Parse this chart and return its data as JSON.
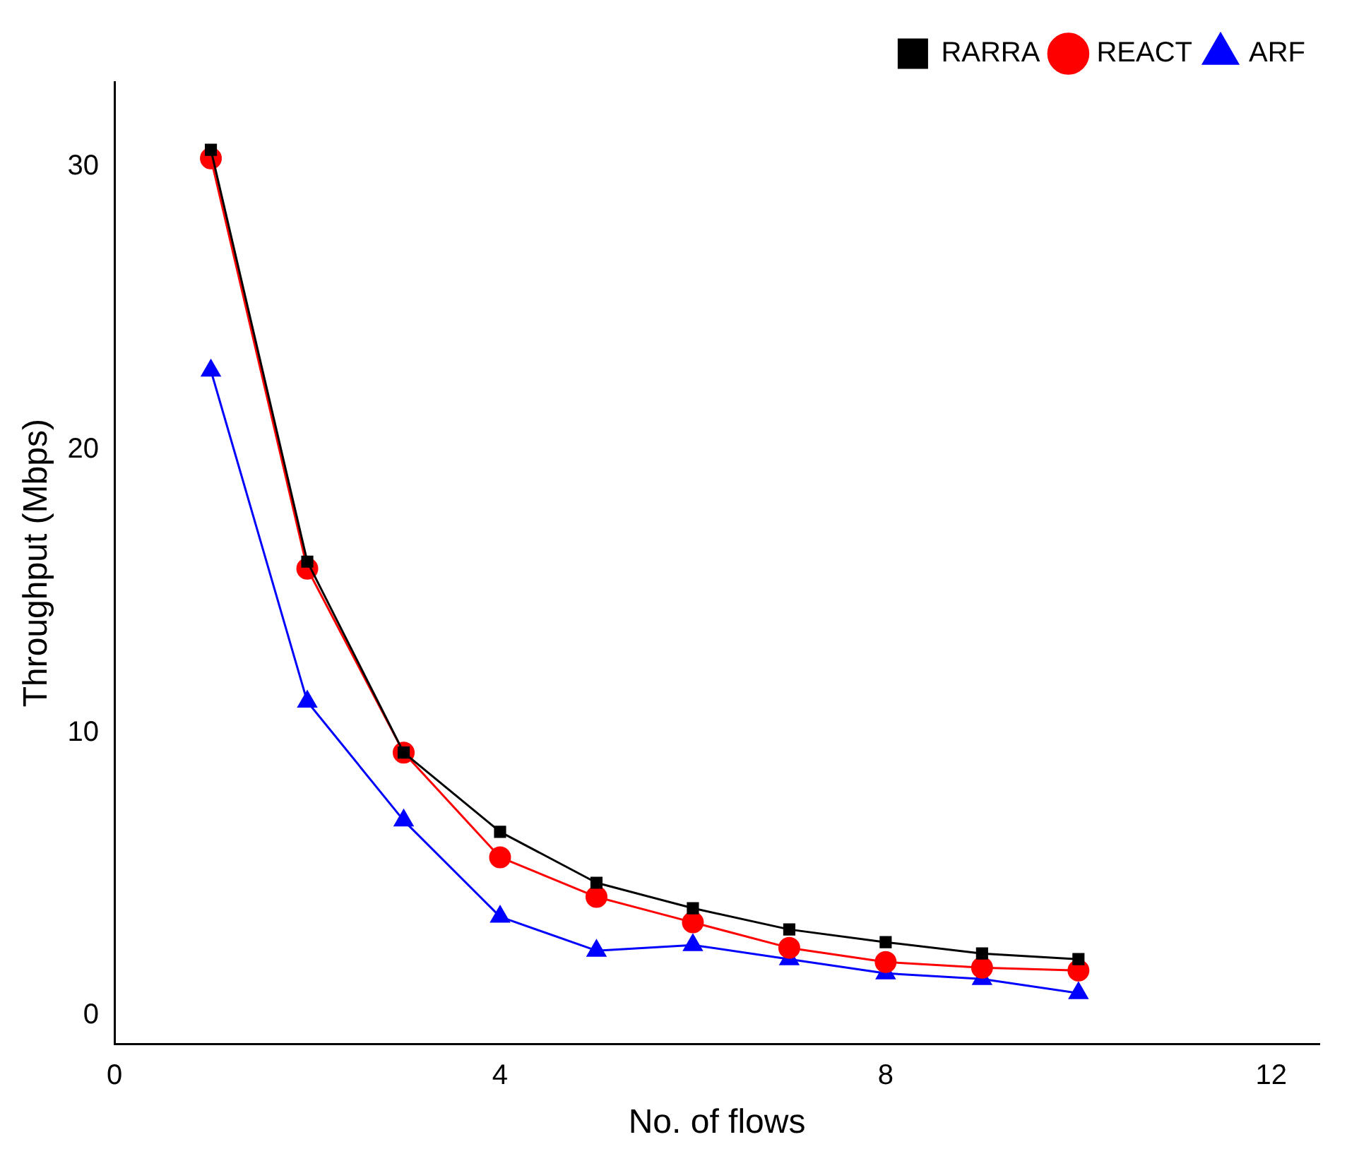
{
  "chart_data": {
    "type": "line",
    "xlabel": "No. of flows",
    "ylabel": "Throughput (Mbps)",
    "x": [
      1,
      2,
      3,
      4,
      5,
      6,
      7,
      8,
      9,
      10
    ],
    "xlim": [
      0,
      12.5
    ],
    "xticks": [
      0,
      4,
      8,
      12
    ],
    "ylim": [
      -1,
      33
    ],
    "yticks": [
      0,
      10,
      20,
      30
    ],
    "grid": false,
    "legend": "top right",
    "line_style": "solid",
    "series": [
      {
        "name": "RARRA",
        "color": "#000000",
        "marker": "square",
        "values": [
          30.6,
          16.05,
          9.3,
          6.5,
          4.7,
          3.8,
          3.05,
          2.6,
          2.2,
          2.0
        ]
      },
      {
        "name": "REACT",
        "color": "#ff0000",
        "marker": "circle",
        "values": [
          30.3,
          15.8,
          9.3,
          5.6,
          4.2,
          3.3,
          2.4,
          1.9,
          1.7,
          1.6
        ]
      },
      {
        "name": "ARF",
        "color": "#0000ff",
        "marker": "triangle",
        "values": [
          22.8,
          11.1,
          6.9,
          3.5,
          2.3,
          2.5,
          2.0,
          1.5,
          1.3,
          0.8
        ]
      }
    ]
  }
}
